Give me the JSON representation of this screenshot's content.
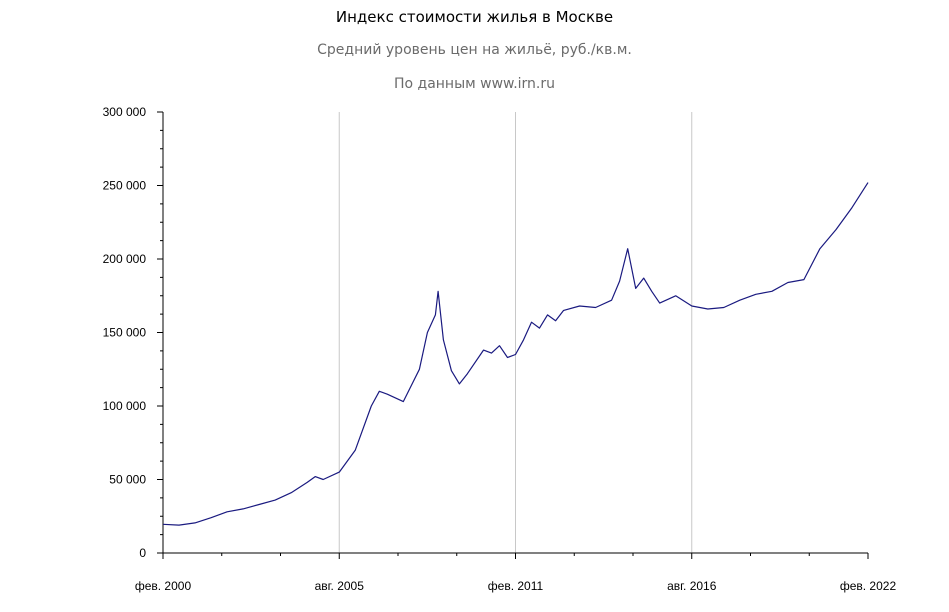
{
  "chart_data": {
    "type": "line",
    "title": "Индекс стоимости жилья в Москве",
    "subtitle": "Средний уровень цен на жильё, руб./кв.м.",
    "source": "По данным www.irn.ru",
    "xlabel": "",
    "ylabel": "",
    "ylim": [
      0,
      300000
    ],
    "xlim": [
      "2000-02",
      "2022-02"
    ],
    "y_ticks": [
      0,
      50000,
      100000,
      150000,
      200000,
      250000,
      300000
    ],
    "y_tick_labels": [
      "0",
      "50 000",
      "100 000",
      "150 000",
      "200 000",
      "250 000",
      "300 000"
    ],
    "x_ticks": [
      "2000-02",
      "2005-08",
      "2011-02",
      "2016-08",
      "2022-02"
    ],
    "x_tick_labels": [
      "фев. 2000",
      "авг. 2005",
      "фев. 2011",
      "авг. 2016",
      "фев. 2022"
    ],
    "grid": "vertical",
    "line_color": "#1a1a80",
    "series": [
      {
        "x": [
          "2000-02",
          "2000-08",
          "2001-02",
          "2001-08",
          "2002-02",
          "2002-08",
          "2003-02",
          "2003-08",
          "2004-02",
          "2004-08",
          "2004-11",
          "2005-02",
          "2005-08",
          "2006-02",
          "2006-08",
          "2006-11",
          "2007-02",
          "2007-08",
          "2008-02",
          "2008-05",
          "2008-08",
          "2008-09",
          "2008-11",
          "2009-02",
          "2009-05",
          "2009-08",
          "2010-02",
          "2010-05",
          "2010-08",
          "2010-11",
          "2011-02",
          "2011-05",
          "2011-08",
          "2011-11",
          "2012-02",
          "2012-05",
          "2012-08",
          "2013-02",
          "2013-08",
          "2014-02",
          "2014-05",
          "2014-08",
          "2014-11",
          "2015-02",
          "2015-05",
          "2015-08",
          "2016-02",
          "2016-08",
          "2017-02",
          "2017-08",
          "2018-02",
          "2018-08",
          "2019-02",
          "2019-08",
          "2020-02",
          "2020-08",
          "2021-02",
          "2021-08",
          "2022-02"
        ],
        "values": [
          19500,
          19000,
          20500,
          24000,
          28000,
          30000,
          33000,
          36000,
          41000,
          48000,
          52000,
          50000,
          55000,
          70000,
          100000,
          110000,
          108000,
          103000,
          125000,
          150000,
          162000,
          178000,
          145000,
          124000,
          115000,
          122000,
          138000,
          136000,
          141000,
          133000,
          135000,
          145000,
          157000,
          153000,
          162000,
          158000,
          165000,
          168000,
          167000,
          172000,
          185000,
          207000,
          180000,
          187000,
          178000,
          170000,
          175000,
          168000,
          166000,
          167000,
          172000,
          176000,
          178000,
          184000,
          186000,
          207000,
          220000,
          235000,
          252000
        ]
      }
    ]
  }
}
